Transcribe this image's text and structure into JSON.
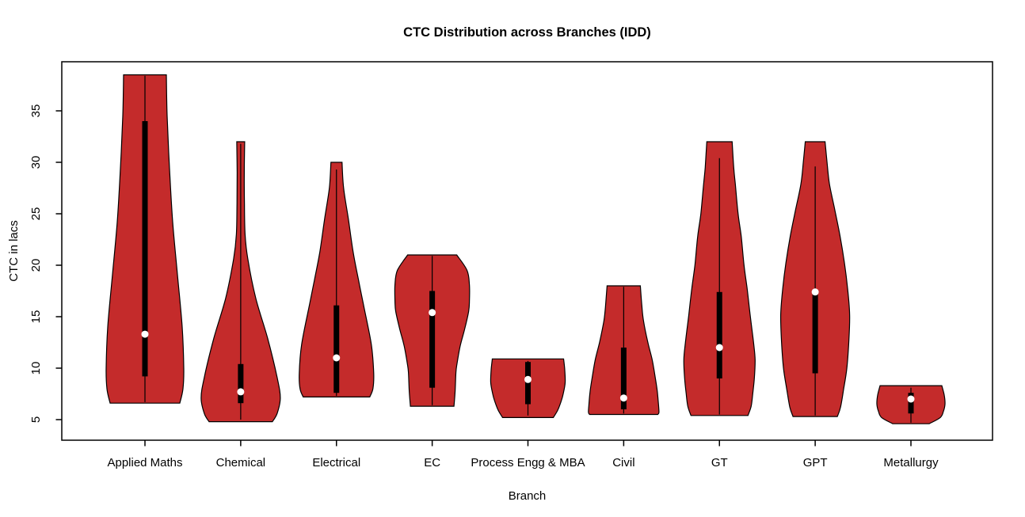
{
  "page": {
    "background": "#FFFFFF"
  },
  "chart_data": {
    "type": "violin",
    "title": "CTC Distribution across Branches (IDD)",
    "xlabel": "Branch",
    "ylabel": "CTC in lacs",
    "fill_color": "#C42B2B",
    "outline_color": "#000000",
    "box_color": "#000000",
    "whisker_color": "#000000",
    "median_dot_color": "#FFFFFF",
    "grid": false,
    "legend": null,
    "y_axis": {
      "ticks": [
        5,
        10,
        15,
        20,
        25,
        30,
        35
      ],
      "ylim": [
        3.0,
        39.8
      ]
    },
    "categories": [
      "Applied Maths",
      "Chemical",
      "Electrical",
      "EC",
      "Process Engg & MBA",
      "Civil",
      "GT",
      "GPT",
      "Metallurgy"
    ],
    "violins": [
      {
        "branch": "Applied Maths",
        "slug": "applied-maths",
        "whisker_low": 6.7,
        "whisker_high": 38.4,
        "q1": 9.2,
        "q3": 34.0,
        "median": 13.3,
        "profile": [
          [
            38.5,
            27
          ],
          [
            34.5,
            28
          ],
          [
            29.4,
            31
          ],
          [
            24.2,
            35
          ],
          [
            19.1,
            41
          ],
          [
            14,
            47
          ],
          [
            10,
            49
          ],
          [
            8,
            48
          ],
          [
            6.6,
            44
          ]
        ]
      },
      {
        "branch": "Chemical",
        "slug": "chemical",
        "whisker_low": 5.0,
        "whisker_high": 31.8,
        "q1": 6.6,
        "q3": 10.4,
        "median": 7.7,
        "profile": [
          [
            32,
            5
          ],
          [
            29,
            4.5
          ],
          [
            26,
            4.7
          ],
          [
            23,
            5.5
          ],
          [
            20.6,
            9
          ],
          [
            16.8,
            19
          ],
          [
            12.9,
            34
          ],
          [
            9.1,
            46
          ],
          [
            7.1,
            50
          ],
          [
            5.6,
            46
          ],
          [
            4.8,
            40
          ]
        ]
      },
      {
        "branch": "Electrical",
        "slug": "electrical",
        "whisker_low": 7.3,
        "whisker_high": 29.3,
        "q1": 7.6,
        "q3": 16.1,
        "median": 11.0,
        "profile": [
          [
            30,
            7
          ],
          [
            27.5,
            9
          ],
          [
            24.5,
            15
          ],
          [
            21.3,
            21
          ],
          [
            18.5,
            28
          ],
          [
            16.2,
            34
          ],
          [
            12.3,
            44
          ],
          [
            9.5,
            47
          ],
          [
            8,
            46
          ],
          [
            7.2,
            42
          ]
        ]
      },
      {
        "branch": "EC",
        "slug": "ec",
        "whisker_low": 6.4,
        "whisker_high": 20.9,
        "q1": 8.1,
        "q3": 17.5,
        "median": 15.4,
        "profile": [
          [
            21,
            31
          ],
          [
            19.5,
            44
          ],
          [
            18.1,
            47
          ],
          [
            16.5,
            47
          ],
          [
            15.5,
            46
          ],
          [
            13.8,
            41
          ],
          [
            12.2,
            35.5
          ],
          [
            10.5,
            31.5
          ],
          [
            9.6,
            30
          ],
          [
            7.8,
            29
          ],
          [
            6.3,
            27.5
          ]
        ]
      },
      {
        "branch": "Process Engg & MBA",
        "slug": "process-engg-mba",
        "whisker_low": 5.4,
        "whisker_high": 10.7,
        "q1": 6.5,
        "q3": 10.6,
        "median": 8.9,
        "profile": [
          [
            10.9,
            45
          ],
          [
            9.8,
            46.5
          ],
          [
            8.6,
            47
          ],
          [
            7.5,
            44.5
          ],
          [
            6.8,
            42
          ],
          [
            5.9,
            37.5
          ],
          [
            5.2,
            32
          ]
        ]
      },
      {
        "branch": "Civil",
        "slug": "civil",
        "whisker_low": 5.6,
        "whisker_high": 17.9,
        "q1": 6.0,
        "q3": 12.0,
        "median": 7.1,
        "profile": [
          [
            18,
            21
          ],
          [
            16,
            23
          ],
          [
            14.6,
            25
          ],
          [
            12.5,
            30.5
          ],
          [
            10.8,
            36
          ],
          [
            9,
            40
          ],
          [
            7.7,
            42.5
          ],
          [
            6.4,
            44
          ],
          [
            5.7,
            44.5
          ],
          [
            5.5,
            43
          ]
        ]
      },
      {
        "branch": "GT",
        "slug": "gt",
        "whisker_low": 5.5,
        "whisker_high": 30.4,
        "q1": 9.0,
        "q3": 17.4,
        "median": 12.0,
        "profile": [
          [
            32,
            16
          ],
          [
            29.5,
            18
          ],
          [
            27.9,
            20
          ],
          [
            25,
            23.5
          ],
          [
            22.8,
            27.5
          ],
          [
            20,
            31
          ],
          [
            17.7,
            35
          ],
          [
            15,
            39
          ],
          [
            12.5,
            43
          ],
          [
            10.8,
            45
          ],
          [
            9,
            44
          ],
          [
            7.5,
            42
          ],
          [
            6.3,
            40
          ],
          [
            5.4,
            36
          ]
        ]
      },
      {
        "branch": "GPT",
        "slug": "gpt",
        "whisker_low": 5.4,
        "whisker_high": 29.6,
        "q1": 9.5,
        "q3": 17.4,
        "median": 17.4,
        "profile": [
          [
            32,
            12.5
          ],
          [
            30,
            15
          ],
          [
            27.9,
            18
          ],
          [
            25.3,
            25
          ],
          [
            22.8,
            31.5
          ],
          [
            20.2,
            37
          ],
          [
            17.7,
            41
          ],
          [
            15.2,
            43.5
          ],
          [
            12.6,
            42.5
          ],
          [
            10,
            40
          ],
          [
            8,
            36
          ],
          [
            6.2,
            32
          ],
          [
            5.3,
            28
          ]
        ]
      },
      {
        "branch": "Metallurgy",
        "slug": "metallurgy",
        "whisker_low": 4.7,
        "whisker_high": 8.1,
        "q1": 5.6,
        "q3": 7.6,
        "median": 7.0,
        "profile": [
          [
            8.3,
            39
          ],
          [
            7.4,
            42
          ],
          [
            6.5,
            43
          ],
          [
            5.8,
            41
          ],
          [
            5.2,
            37
          ],
          [
            4.6,
            23
          ]
        ]
      }
    ]
  }
}
